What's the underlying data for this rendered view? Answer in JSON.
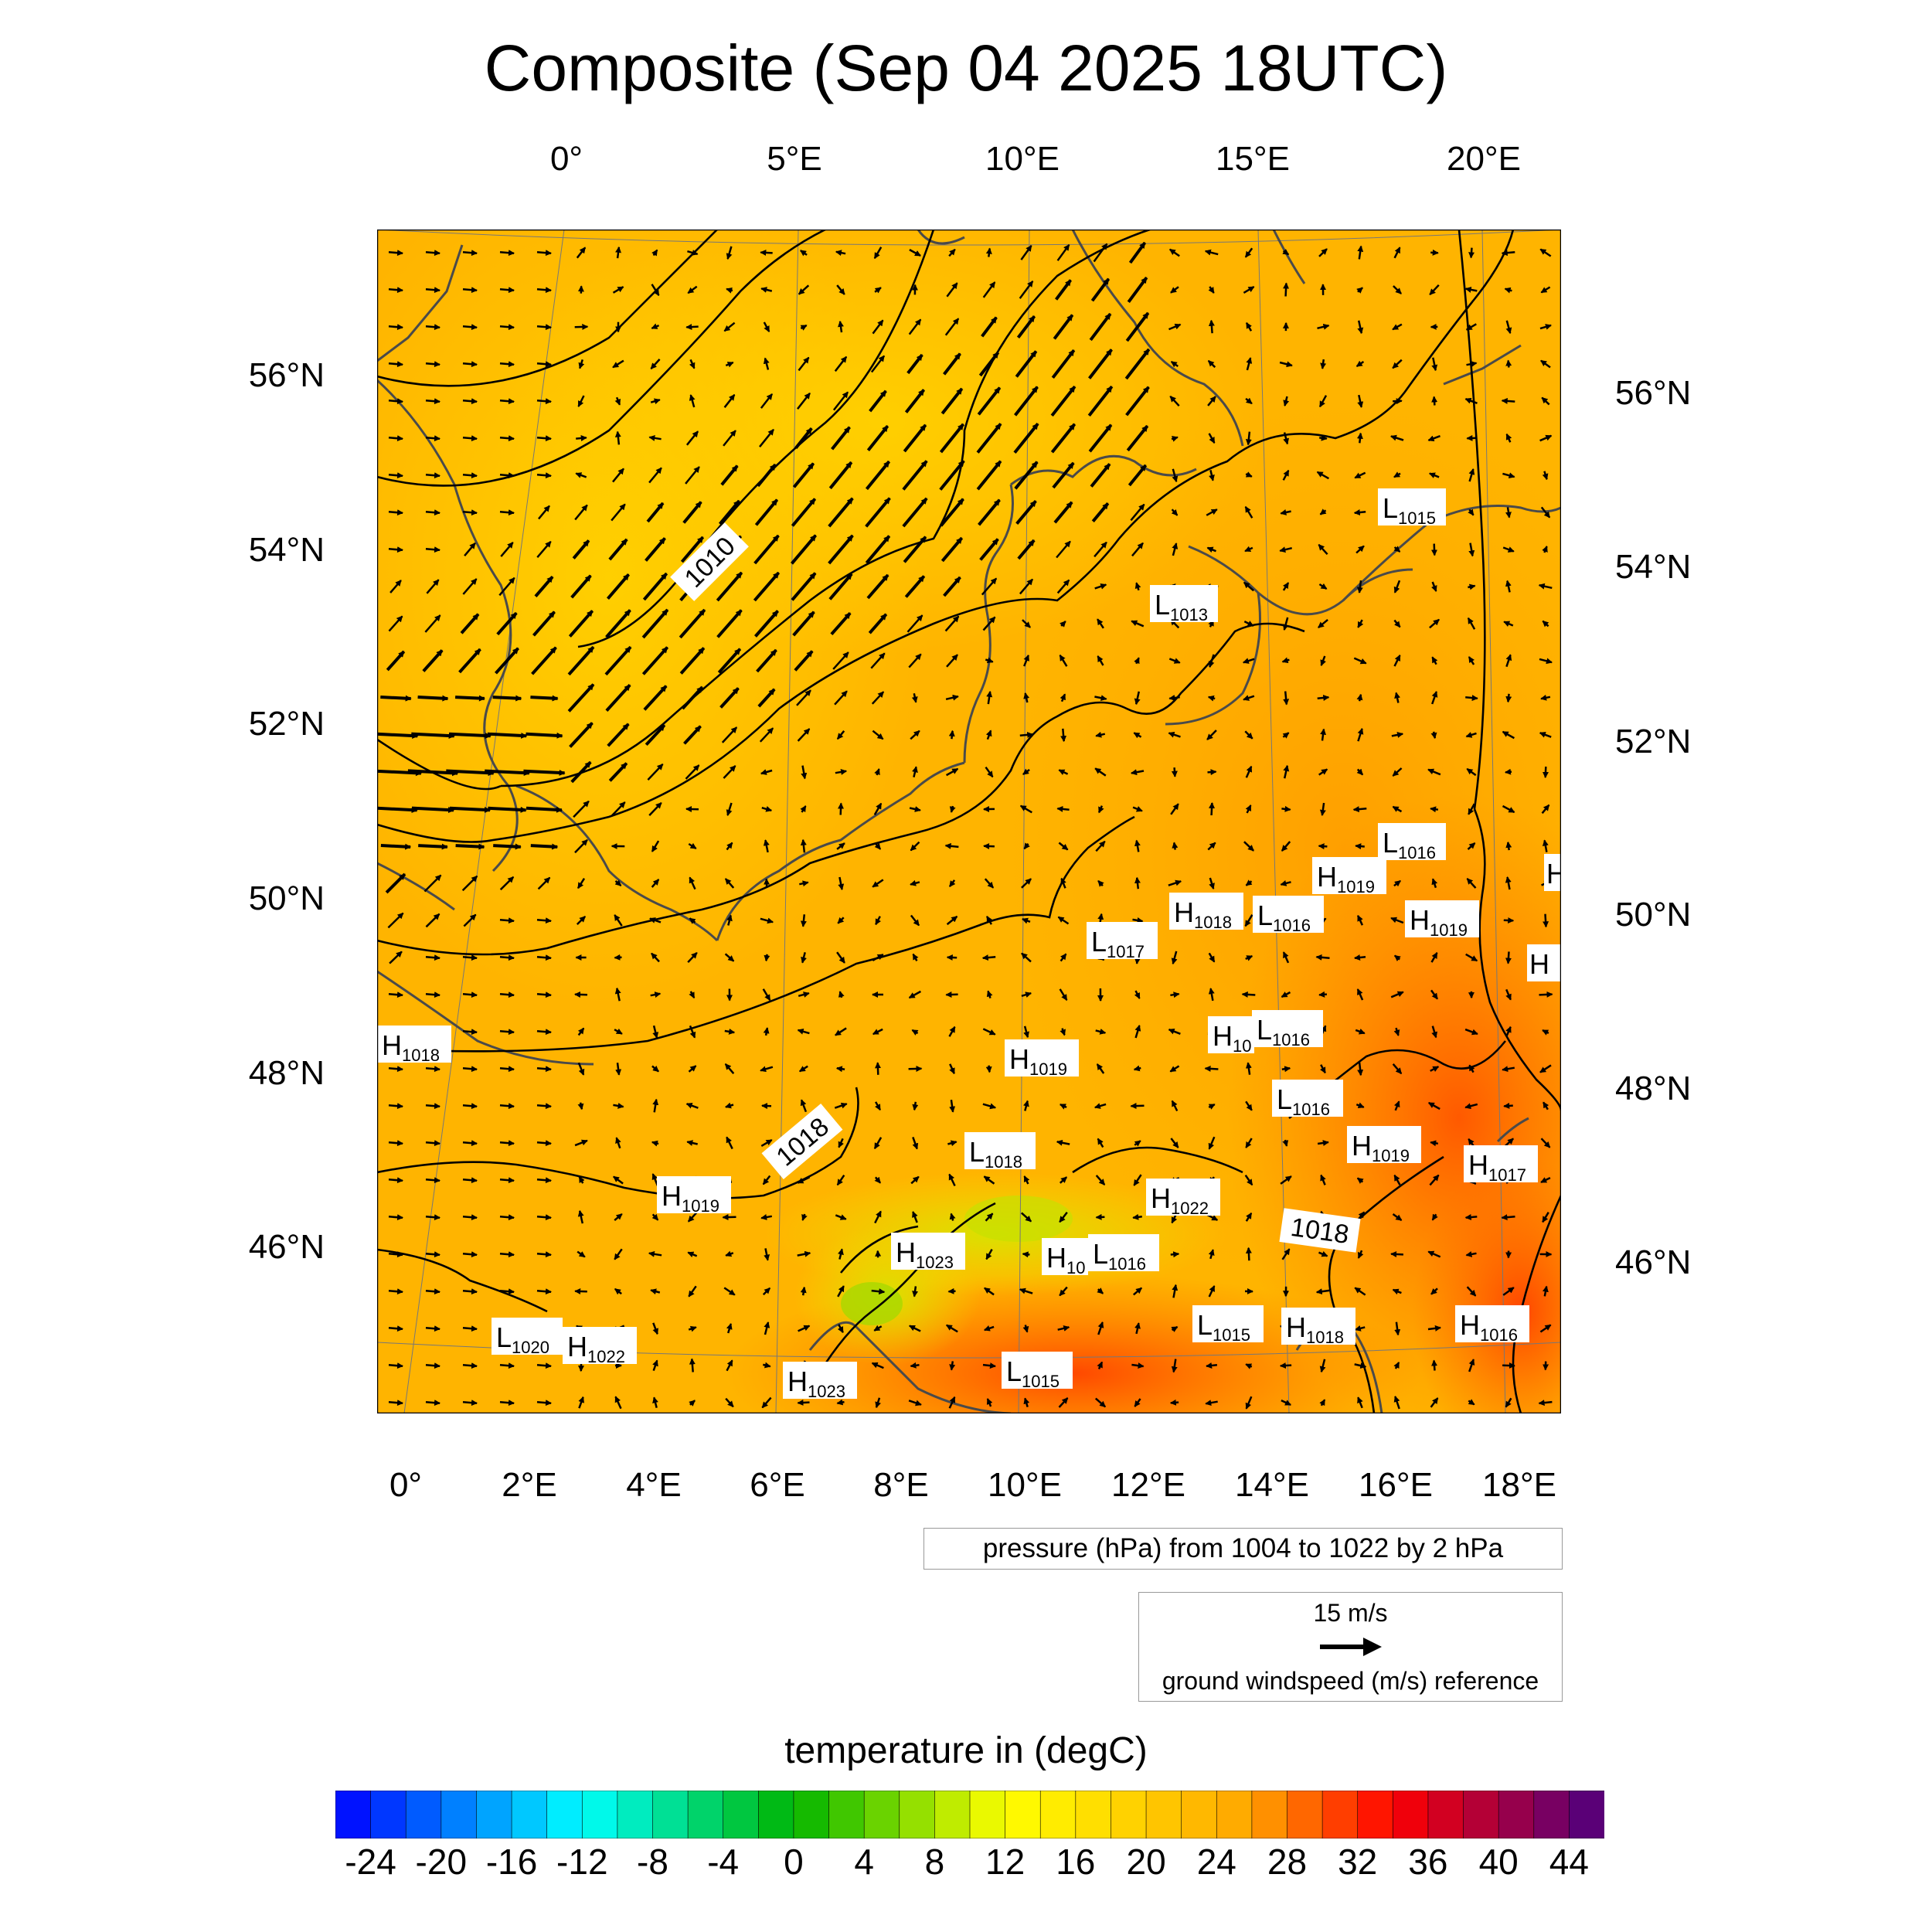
{
  "title": "Composite (Sep 04 2025 18UTC)",
  "axes": {
    "top_ticks": [
      "0°",
      "5°E",
      "10°E",
      "15°E",
      "20°E"
    ],
    "bottom_ticks": [
      "0°",
      "2°E",
      "4°E",
      "6°E",
      "8°E",
      "10°E",
      "12°E",
      "14°E",
      "16°E",
      "18°E"
    ],
    "left_ticks": [
      "56°N",
      "54°N",
      "52°N",
      "50°N",
      "48°N",
      "46°N"
    ],
    "right_ticks": [
      "56°N",
      "54°N",
      "52°N",
      "50°N",
      "48°N",
      "46°N"
    ]
  },
  "isobar_labels": [
    "1010",
    "1018",
    "1018"
  ],
  "pressure_centers": [
    {
      "type": "L",
      "value": "1015"
    },
    {
      "type": "L",
      "value": "1013"
    },
    {
      "type": "L",
      "value": "1016"
    },
    {
      "type": "H",
      "value": "1019"
    },
    {
      "type": "H",
      "value": "1018"
    },
    {
      "type": "L",
      "value": "1016"
    },
    {
      "type": "H",
      "value": "1019"
    },
    {
      "type": "L",
      "value": "1017"
    },
    {
      "type": "H",
      "value": "1018"
    },
    {
      "type": "H",
      "value": "10"
    },
    {
      "type": "L",
      "value": "1016"
    },
    {
      "type": "H",
      "value": "1019"
    },
    {
      "type": "L",
      "value": "1016"
    },
    {
      "type": "L",
      "value": "1018"
    },
    {
      "type": "H",
      "value": "1019"
    },
    {
      "type": "H",
      "value": "1017"
    },
    {
      "type": "H",
      "value": "1019"
    },
    {
      "type": "H",
      "value": "1022"
    },
    {
      "type": "H",
      "value": "1023"
    },
    {
      "type": "H",
      "value": "10"
    },
    {
      "type": "L",
      "value": "1016"
    },
    {
      "type": "L",
      "value": "1020"
    },
    {
      "type": "H",
      "value": "1022"
    },
    {
      "type": "L",
      "value": "1015"
    },
    {
      "type": "H",
      "value": "1018"
    },
    {
      "type": "H",
      "value": "1016"
    },
    {
      "type": "H",
      "value": "1023"
    },
    {
      "type": "L",
      "value": "1015"
    },
    {
      "type": "H",
      "value": ""
    },
    {
      "type": "H",
      "value": ""
    }
  ],
  "legend": {
    "pressure": "pressure (hPa) from 1004 to 1022 by 2 hPa",
    "wind_speed": "15 m/s",
    "wind_desc": "ground windspeed (m/s) reference"
  },
  "colorbar": {
    "title": "temperature in (degC)",
    "labels": [
      "-24",
      "-20",
      "-16",
      "-12",
      "-8",
      "-4",
      "0",
      "4",
      "8",
      "12",
      "16",
      "20",
      "24",
      "28",
      "32",
      "36",
      "40",
      "44"
    ],
    "min": -26,
    "max": 46,
    "step": 2,
    "colors": [
      "#0000ff",
      "#00ffff",
      "#00b400",
      "#ffff00",
      "#ffa500",
      "#ff0000",
      "#4b0082"
    ]
  }
}
